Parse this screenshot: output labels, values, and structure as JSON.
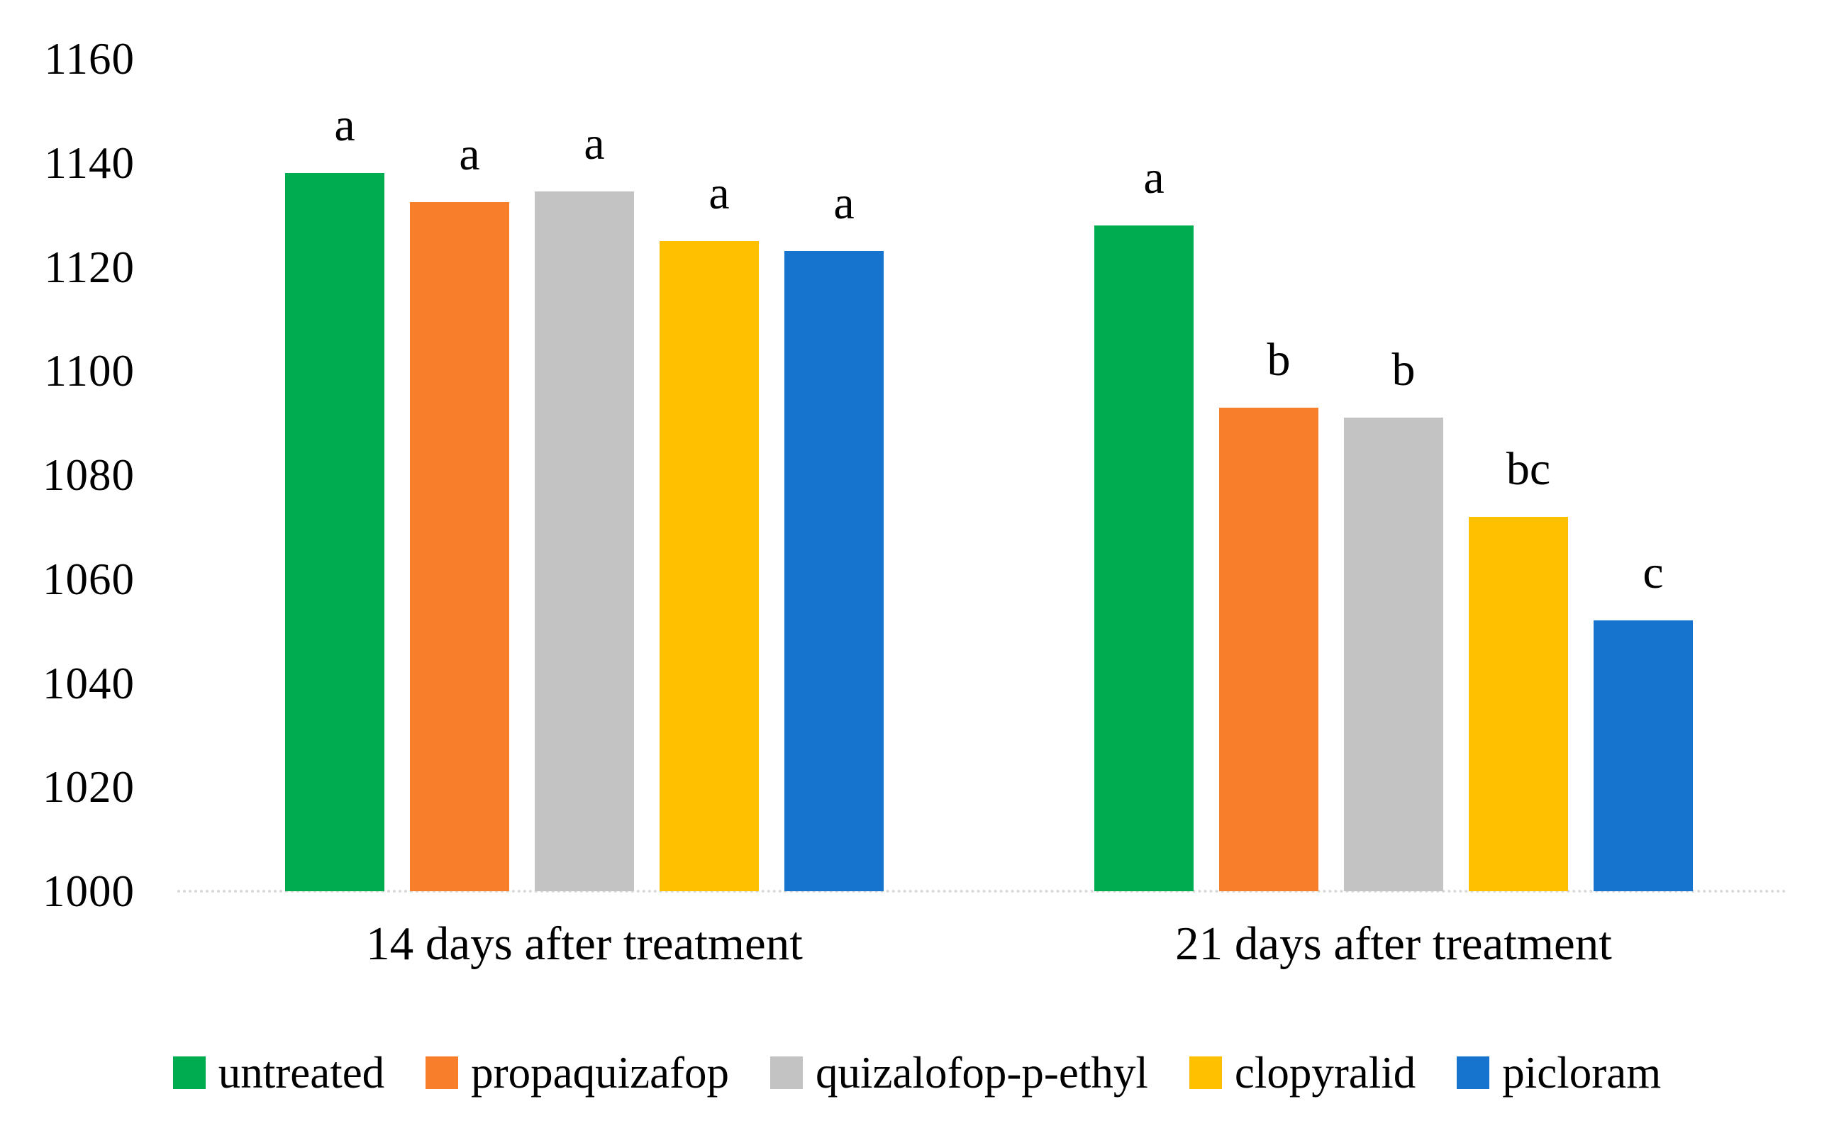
{
  "chart_data": {
    "type": "bar",
    "title": "",
    "xlabel": "",
    "ylabel": "",
    "categories": [
      "14 days after treatment",
      "21 days after treatment"
    ],
    "series": [
      {
        "name": "untreated",
        "color": "#00AC50",
        "pattern": "solid",
        "values": [
          1138,
          1128
        ],
        "sig_labels": [
          "a",
          "a"
        ]
      },
      {
        "name": "propaquizafop",
        "color": "#F87E2B",
        "pattern": "solid",
        "values": [
          1132.5,
          1093
        ],
        "sig_labels": [
          "a",
          "b"
        ]
      },
      {
        "name": "quizalofop-p-ethyl",
        "color": "#C3C3C3",
        "pattern": "dots",
        "values": [
          1134.5,
          1091
        ],
        "sig_labels": [
          "a",
          "b"
        ]
      },
      {
        "name": "clopyralid",
        "color": "#FFC000",
        "pattern": "solid",
        "values": [
          1125,
          1072
        ],
        "sig_labels": [
          "a",
          "bc"
        ]
      },
      {
        "name": "picloram",
        "color": "#1774CE",
        "pattern": "solid",
        "values": [
          1123,
          1052
        ],
        "sig_labels": [
          "a",
          "c"
        ]
      }
    ],
    "y_axis": {
      "min": 1000,
      "max": 1160,
      "step": 20,
      "ticks": [
        1160,
        1140,
        1120,
        1100,
        1080,
        1060,
        1040,
        1020,
        1000
      ]
    },
    "ylim": [
      1000,
      1160
    ],
    "grid": false,
    "legend_position": "bottom",
    "axis_line_color": "#D9D9D9",
    "text_color": "#000000"
  }
}
